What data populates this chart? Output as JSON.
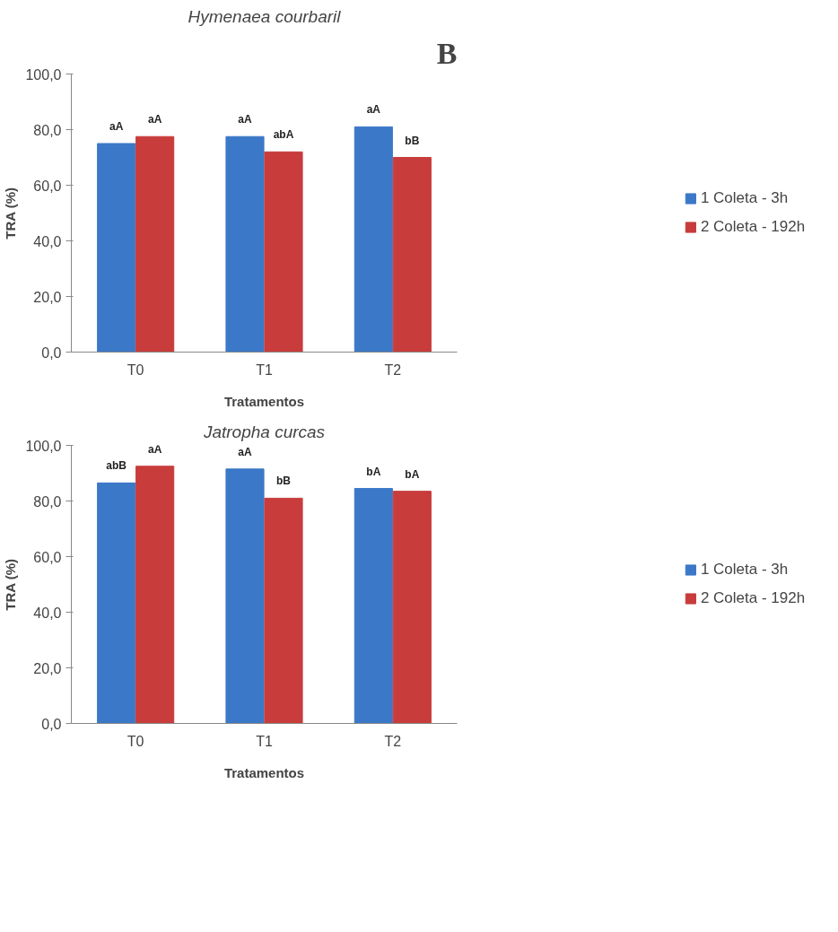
{
  "chart_data": [
    {
      "type": "bar",
      "title": "Hymenaea courbaril",
      "xlabel": "Tratamentos",
      "ylabel": "TRA (%)",
      "annotations": [
        "B"
      ],
      "categories": [
        "T0",
        "T1",
        "T2"
      ],
      "series": [
        {
          "name": "1 Coleta - 3h",
          "color": "#3c78c8",
          "values": [
            75,
            77.5,
            81
          ],
          "value_labels": [
            "aA",
            "aA",
            "aA"
          ]
        },
        {
          "name": "2 Coleta - 192h",
          "color": "#c83c3c",
          "values": [
            77.5,
            72,
            70
          ],
          "value_labels": [
            "aA",
            "abA",
            "bB"
          ]
        }
      ],
      "ylim": [
        0,
        100
      ],
      "yticks": [
        {
          "value": 0,
          "label": "0,0"
        },
        {
          "value": 20,
          "label": "20,0"
        },
        {
          "value": 40,
          "label": "40,0"
        },
        {
          "value": 60,
          "label": "60,0"
        },
        {
          "value": 80,
          "label": "80,0"
        },
        {
          "value": 100,
          "label": "100,0"
        }
      ],
      "grid": false,
      "legend": "right"
    },
    {
      "type": "bar",
      "title": "Jatropha curcas",
      "xlabel": "Tratamentos",
      "ylabel": "TRA (%)",
      "categories": [
        "T0",
        "T1",
        "T2"
      ],
      "series": [
        {
          "name": "1 Coleta - 3h",
          "color": "#3c78c8",
          "values": [
            86.5,
            91.5,
            84.5
          ],
          "value_labels": [
            "abB",
            "aA",
            "bA"
          ]
        },
        {
          "name": "2 Coleta - 192h",
          "color": "#c83c3c",
          "values": [
            92.5,
            81,
            83.5
          ],
          "value_labels": [
            "aA",
            "bB",
            "bA"
          ]
        }
      ],
      "ylim": [
        0,
        100
      ],
      "yticks": [
        {
          "value": 0,
          "label": "0,0"
        },
        {
          "value": 20,
          "label": "20,0"
        },
        {
          "value": 40,
          "label": "40,0"
        },
        {
          "value": 60,
          "label": "60,0"
        },
        {
          "value": 80,
          "label": "80,0"
        },
        {
          "value": 100,
          "label": "100,0"
        }
      ],
      "grid": false,
      "legend": "right"
    }
  ]
}
